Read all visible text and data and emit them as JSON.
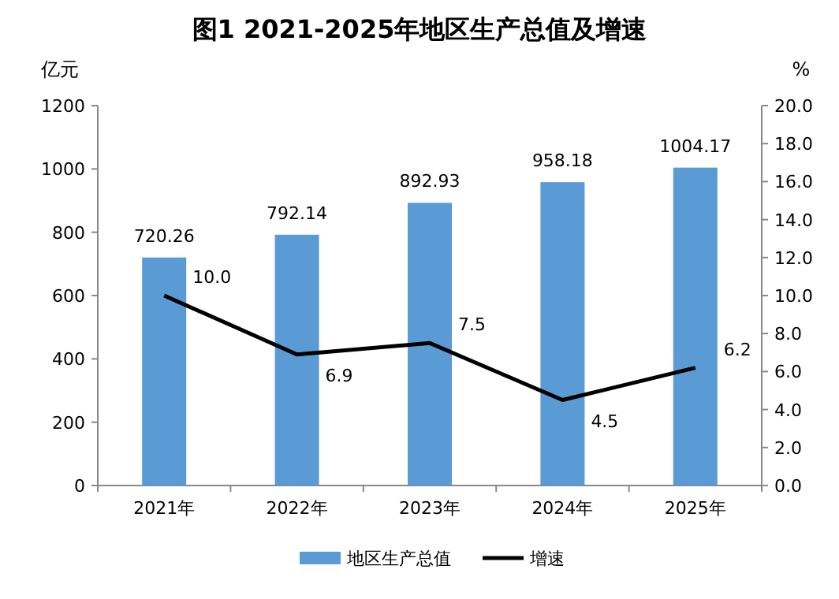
{
  "chart_data": {
    "type": "bar",
    "title": "图1  2021-2025年地区生产总值及增速",
    "ylabel": "亿元",
    "y2label": "%",
    "categories": [
      "2021年",
      "2022年",
      "2023年",
      "2024年",
      "2025年"
    ],
    "series": [
      {
        "name": "地区生产总值",
        "color": "#5b9bd5",
        "values": [
          720.26,
          792.14,
          892.93,
          958.18,
          1004.17
        ],
        "value_labels": [
          "720.26",
          "792.14",
          "892.93",
          "958.18",
          "1004.17"
        ]
      },
      {
        "name": "增速",
        "type": "line",
        "axis": "y2",
        "color": "#000000",
        "values": [
          10.0,
          6.9,
          7.5,
          4.5,
          6.2
        ],
        "value_labels": [
          "10.0",
          "6.9",
          "7.5",
          "4.5",
          "6.2"
        ]
      }
    ],
    "ylim": [
      0,
      1200
    ],
    "yticks": [
      0,
      200,
      400,
      600,
      800,
      1000,
      1200
    ],
    "y2lim": [
      0,
      20
    ],
    "y2ticks": [
      {
        "value": 0,
        "label": "0.0"
      },
      {
        "value": 2,
        "label": "2.0"
      },
      {
        "value": 4,
        "label": "4.0"
      },
      {
        "value": 6,
        "label": "6.0"
      },
      {
        "value": 8,
        "label": "8.0"
      },
      {
        "value": 10,
        "label": "10.0"
      },
      {
        "value": 12,
        "label": "12.0"
      },
      {
        "value": 14,
        "label": "14.0"
      },
      {
        "value": 16,
        "label": "16.0"
      },
      {
        "value": 18,
        "label": "18.0"
      },
      {
        "value": 20,
        "label": "20.0"
      }
    ],
    "grid": false,
    "legend": "bottom",
    "marker": "none",
    "line_style": "solid"
  }
}
